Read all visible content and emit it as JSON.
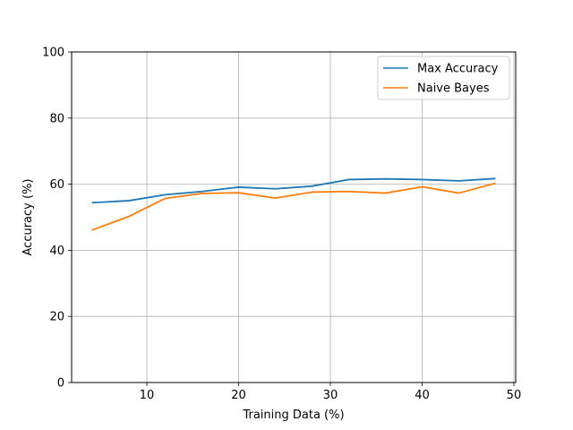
{
  "chart_data": {
    "type": "line",
    "xlabel": "Training Data (%)",
    "ylabel": "Accuracy (%)",
    "xlim": [
      1.8,
      50.2
    ],
    "ylim": [
      0,
      100
    ],
    "xticks": [
      10,
      20,
      30,
      40,
      50
    ],
    "yticks": [
      0,
      20,
      40,
      60,
      80,
      100
    ],
    "grid": true,
    "legend_position": "top-right",
    "x": [
      4,
      8,
      12,
      16,
      20,
      24,
      28,
      32,
      36,
      40,
      44,
      48
    ],
    "series": [
      {
        "name": "Max Accuracy",
        "color": "#1f77b4",
        "values": [
          54.4,
          55.0,
          56.8,
          57.8,
          59.1,
          58.6,
          59.4,
          61.4,
          61.6,
          61.4,
          61.0,
          61.7
        ]
      },
      {
        "name": "Naive Bayes",
        "color": "#ff7f0e",
        "values": [
          46.1,
          50.2,
          55.7,
          57.2,
          57.4,
          55.8,
          57.6,
          57.8,
          57.3,
          59.2,
          57.3,
          60.3
        ]
      }
    ]
  }
}
